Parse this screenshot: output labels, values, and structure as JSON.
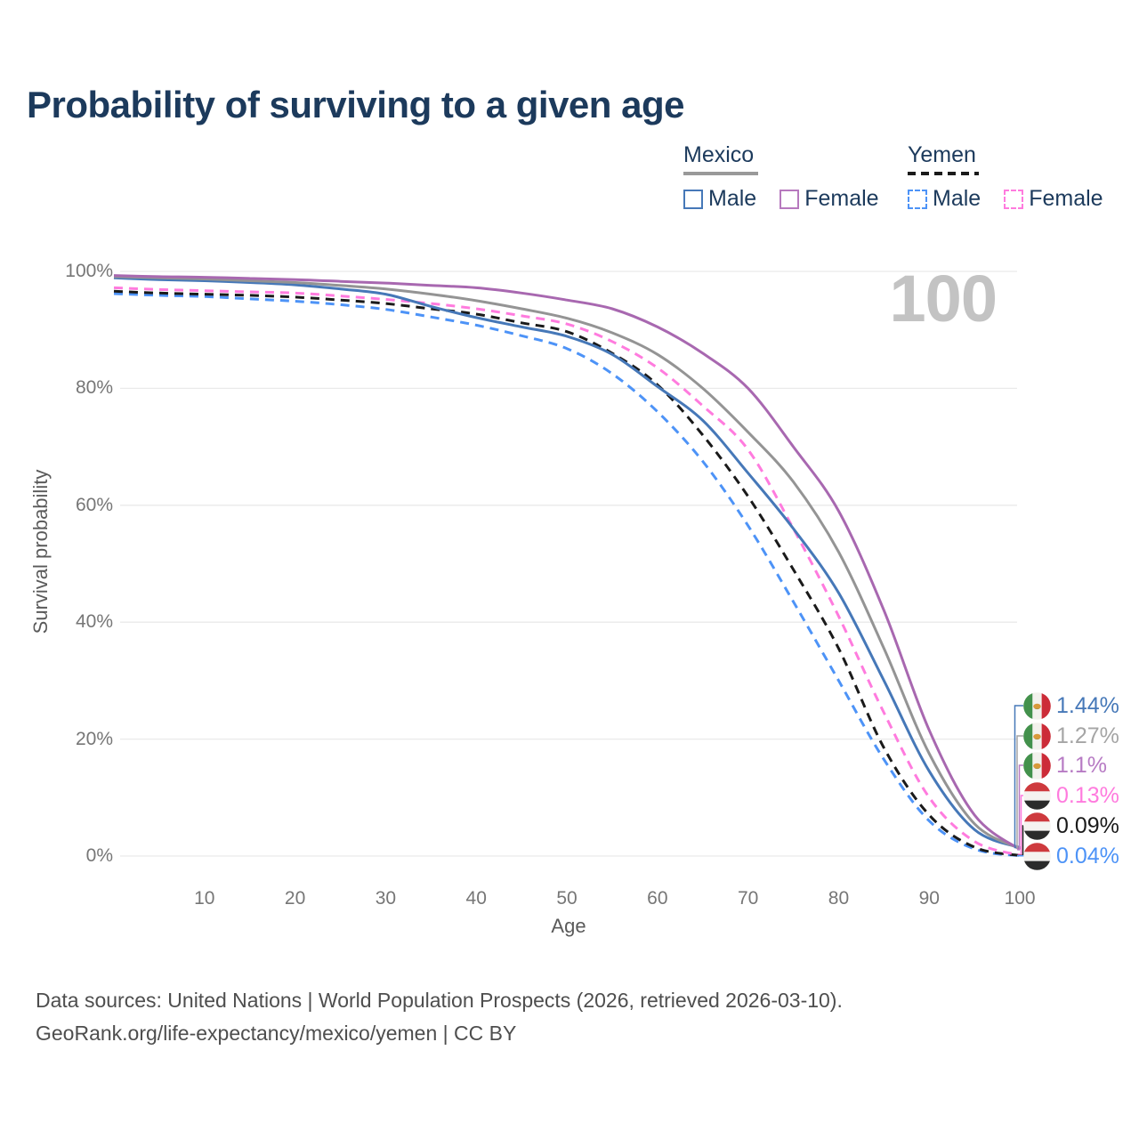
{
  "title": "Probability of surviving to a given age",
  "watermark": "100",
  "legend": {
    "groups": [
      {
        "country": "Mexico",
        "line_style": "solid",
        "underline_color": "#999999",
        "items": [
          {
            "label": "Male",
            "color": "#4678B8",
            "dashed": false
          },
          {
            "label": "Female",
            "color": "#B779BE",
            "dashed": false
          }
        ]
      },
      {
        "country": "Yemen",
        "line_style": "dashed",
        "underline_color": "#1A1A1A",
        "items": [
          {
            "label": "Male",
            "color": "#4D93F7",
            "dashed": true
          },
          {
            "label": "Female",
            "color": "#FF7BDE",
            "dashed": true
          }
        ]
      }
    ]
  },
  "chart_data": {
    "type": "line",
    "title": "Probability of surviving to a given age",
    "xlabel": "Age",
    "ylabel": "Survival probability",
    "xlim": [
      0,
      100
    ],
    "ylim": [
      0,
      100
    ],
    "grid": "horizontal",
    "x_ticks": [
      "10",
      "20",
      "30",
      "40",
      "50",
      "60",
      "70",
      "80",
      "90",
      "100"
    ],
    "y_ticks": [
      "0%",
      "20%",
      "40%",
      "60%",
      "80%",
      "100%"
    ],
    "hovered_age": "100",
    "x": [
      0,
      5,
      10,
      15,
      20,
      25,
      30,
      35,
      40,
      45,
      50,
      55,
      60,
      65,
      70,
      75,
      80,
      85,
      90,
      95,
      100
    ],
    "series": [
      {
        "name": "Mexico Male",
        "country": "Mexico",
        "sex": "Male",
        "color": "#4678B8",
        "dash": "solid",
        "values": [
          98.9,
          98.6,
          98.4,
          98.1,
          97.7,
          97.0,
          96.1,
          94.0,
          92.1,
          90.5,
          88.9,
          85.8,
          80.3,
          74.5,
          65.5,
          56.0,
          45.0,
          30.0,
          14.5,
          4.5,
          1.44
        ]
      },
      {
        "name": "Mexico Both sexes",
        "country": "Mexico",
        "sex": "Both",
        "color": "#949494",
        "dash": "solid",
        "values": [
          99.1,
          98.9,
          98.7,
          98.4,
          98.1,
          97.6,
          97.0,
          96.1,
          95.0,
          93.6,
          92.0,
          89.5,
          85.8,
          80.0,
          72.5,
          64.0,
          52.0,
          35.5,
          17.5,
          5.5,
          1.27
        ]
      },
      {
        "name": "Mexico Female",
        "country": "Mexico",
        "sex": "Female",
        "color": "#A868B0",
        "dash": "solid",
        "values": [
          99.3,
          99.1,
          99.0,
          98.8,
          98.6,
          98.3,
          98.0,
          97.6,
          97.2,
          96.3,
          95.1,
          93.6,
          90.5,
          86.0,
          80.0,
          70.0,
          59.0,
          42.0,
          21.5,
          7.0,
          1.1
        ]
      },
      {
        "name": "Yemen Female",
        "country": "Yemen",
        "sex": "Female",
        "color": "#FF7BDE",
        "dash": "dashed",
        "values": [
          97.2,
          96.9,
          96.7,
          96.5,
          96.3,
          95.8,
          95.2,
          94.5,
          93.6,
          92.4,
          91.0,
          88.0,
          83.5,
          77.0,
          69.5,
          56.0,
          41.0,
          24.5,
          10.0,
          2.5,
          0.13
        ]
      },
      {
        "name": "Yemen Both sexes",
        "country": "Yemen",
        "sex": "Both",
        "color": "#1A1A1A",
        "dash": "dashed",
        "values": [
          96.6,
          96.3,
          96.1,
          95.9,
          95.6,
          95.1,
          94.5,
          93.6,
          92.7,
          91.2,
          89.7,
          86.0,
          80.6,
          72.0,
          61.5,
          49.0,
          35.5,
          18.5,
          7.0,
          1.5,
          0.09
        ]
      },
      {
        "name": "Yemen Male",
        "country": "Yemen",
        "sex": "Male",
        "color": "#4D93F7",
        "dash": "dashed",
        "values": [
          96.2,
          95.9,
          95.7,
          95.3,
          94.9,
          94.3,
          93.5,
          92.2,
          90.8,
          89.0,
          86.8,
          82.5,
          76.0,
          67.5,
          56.5,
          43.5,
          30.0,
          16.5,
          6.0,
          1.2,
          0.04
        ]
      }
    ],
    "end_rows": [
      {
        "flag": "mexico",
        "value": "1.44%",
        "color": "#4678B8",
        "series": "Mexico Male"
      },
      {
        "flag": "mexico",
        "value": "1.27%",
        "color": "#A5A5A5",
        "series": "Mexico Both sexes"
      },
      {
        "flag": "mexico",
        "value": "1.1%",
        "color": "#B77BC4",
        "series": "Mexico Female"
      },
      {
        "flag": "yemen",
        "value": "0.13%",
        "color": "#FF7BDE",
        "series": "Yemen Female"
      },
      {
        "flag": "yemen",
        "value": "0.09%",
        "color": "#1A1A1A",
        "series": "Yemen Both sexes"
      },
      {
        "flag": "yemen",
        "value": "0.04%",
        "color": "#4D93F7",
        "series": "Yemen Male"
      }
    ]
  },
  "footer": {
    "line1": "Data sources: United Nations | World Population Prospects (2026, retrieved 2026-03-10).",
    "line2": "GeoRank.org/life-expectancy/mexico/yemen | CC BY"
  }
}
